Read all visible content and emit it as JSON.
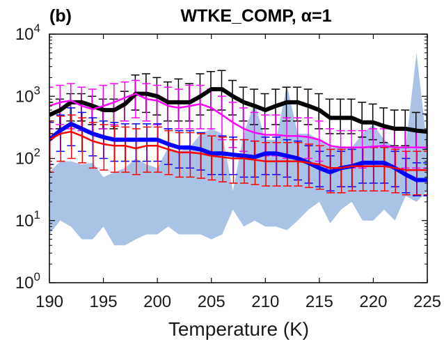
{
  "chart_data": {
    "type": "line",
    "panel_label": "(b)",
    "title": "WTKE_COMP, α=1",
    "xlabel": "Temperature (K)",
    "ylabel": "",
    "xlim": [
      190,
      225
    ],
    "ylim": [
      1,
      10000
    ],
    "yscale": "log",
    "xticks": [
      190,
      195,
      200,
      205,
      210,
      215,
      220,
      225
    ],
    "yticks": [
      {
        "value": 1,
        "base": "10",
        "exp": "0"
      },
      {
        "value": 10,
        "base": "10",
        "exp": "1"
      },
      {
        "value": 100,
        "base": "10",
        "exp": "2"
      },
      {
        "value": 1000,
        "base": "10",
        "exp": "3"
      },
      {
        "value": 10000,
        "base": "10",
        "exp": "4"
      }
    ],
    "grid": false,
    "x": [
      190,
      191,
      192,
      193,
      194,
      195,
      196,
      197,
      198,
      199,
      200,
      201,
      202,
      203,
      204,
      205,
      206,
      207,
      208,
      209,
      210,
      211,
      212,
      213,
      214,
      215,
      216,
      217,
      218,
      219,
      220,
      221,
      222,
      223,
      224,
      225
    ],
    "band": {
      "color": "#a9c2e6",
      "upper": [
        60,
        90,
        90,
        80,
        85,
        50,
        60,
        70,
        100,
        80,
        70,
        150,
        130,
        150,
        250,
        300,
        250,
        30,
        250,
        800,
        200,
        200,
        1500,
        250,
        250,
        200,
        150,
        150,
        150,
        250,
        350,
        200,
        150,
        150,
        5000,
        150
      ],
      "lower": [
        6,
        10,
        8,
        5,
        5,
        8,
        4,
        4,
        5,
        6,
        6,
        8,
        6,
        6,
        6,
        5,
        6,
        15,
        8,
        10,
        8,
        8,
        7,
        10,
        15,
        20,
        9,
        15,
        20,
        10,
        10,
        15,
        10,
        25,
        20,
        30
      ]
    },
    "series": [
      {
        "color": "#000000",
        "stroke_width": 6,
        "values": [
          500,
          600,
          800,
          800,
          700,
          600,
          600,
          750,
          1100,
          1100,
          1000,
          800,
          800,
          800,
          1000,
          1300,
          1300,
          1000,
          800,
          700,
          600,
          700,
          800,
          800,
          700,
          600,
          450,
          450,
          450,
          380,
          380,
          330,
          300,
          300,
          280,
          270
        ],
        "err_upper": [
          800,
          900,
          1100,
          1100,
          1000,
          900,
          900,
          1200,
          2200,
          2300,
          2000,
          1700,
          1900,
          1600,
          2300,
          2500,
          2600,
          1800,
          1400,
          1300,
          1100,
          1300,
          1400,
          1400,
          1300,
          1100,
          900,
          900,
          900,
          800,
          750,
          650,
          600,
          600,
          550,
          520
        ],
        "err_lower": [
          250,
          300,
          400,
          400,
          350,
          300,
          300,
          400,
          600,
          550,
          500,
          400,
          400,
          400,
          500,
          600,
          600,
          500,
          400,
          350,
          300,
          350,
          400,
          400,
          350,
          300,
          250,
          250,
          250,
          220,
          200,
          180,
          160,
          160,
          150,
          140
        ]
      },
      {
        "color": "#ff00ff",
        "stroke_width": 2.5,
        "values": [
          700,
          800,
          850,
          700,
          620,
          700,
          800,
          950,
          1100,
          900,
          850,
          700,
          650,
          700,
          750,
          650,
          500,
          380,
          300,
          260,
          240,
          240,
          230,
          230,
          220,
          200,
          160,
          150,
          150,
          150,
          155,
          160,
          150,
          150,
          150,
          150
        ],
        "err_upper": [
          1400,
          1500,
          1600,
          1400,
          1300,
          1500,
          1600,
          1700,
          1800,
          1600,
          1500,
          1400,
          1300,
          1500,
          1500,
          1300,
          1000,
          800,
          650,
          550,
          500,
          500,
          450,
          450,
          450,
          400,
          300,
          280,
          280,
          280,
          300,
          300,
          300,
          300,
          280,
          280
        ],
        "err_lower": [
          300,
          350,
          300,
          280,
          250,
          300,
          350,
          400,
          450,
          400,
          350,
          300,
          300,
          300,
          300,
          300,
          200,
          150,
          130,
          110,
          110,
          110,
          100,
          100,
          100,
          90,
          70,
          70,
          70,
          70,
          75,
          75,
          70,
          70,
          70,
          70
        ]
      },
      {
        "color": "#0000ff",
        "stroke_width": 6,
        "values": [
          200,
          280,
          360,
          300,
          250,
          220,
          200,
          200,
          200,
          200,
          200,
          170,
          150,
          150,
          140,
          120,
          120,
          115,
          110,
          105,
          120,
          120,
          110,
          100,
          85,
          70,
          60,
          70,
          75,
          85,
          85,
          85,
          70,
          55,
          45,
          45
        ],
        "err_upper": [
          380,
          500,
          650,
          550,
          450,
          400,
          380,
          360,
          360,
          360,
          360,
          300,
          280,
          280,
          260,
          230,
          230,
          220,
          200,
          190,
          220,
          220,
          200,
          190,
          160,
          130,
          110,
          130,
          140,
          150,
          150,
          150,
          130,
          100,
          85,
          85
        ],
        "err_lower": [
          80,
          130,
          160,
          130,
          110,
          100,
          90,
          90,
          90,
          90,
          90,
          80,
          70,
          70,
          65,
          55,
          55,
          55,
          50,
          50,
          55,
          55,
          50,
          45,
          40,
          35,
          30,
          35,
          35,
          40,
          40,
          40,
          35,
          28,
          25,
          25
        ]
      },
      {
        "color": "#ff0000",
        "stroke_width": 2.5,
        "values": [
          200,
          250,
          270,
          230,
          190,
          170,
          160,
          160,
          145,
          160,
          160,
          140,
          125,
          125,
          120,
          110,
          105,
          100,
          100,
          95,
          90,
          90,
          90,
          90,
          85,
          80,
          70,
          70,
          75,
          75,
          75,
          75,
          70,
          65,
          65,
          65
        ],
        "err_upper": [
          400,
          480,
          500,
          450,
          380,
          350,
          330,
          320,
          300,
          320,
          320,
          280,
          260,
          260,
          250,
          230,
          220,
          200,
          200,
          190,
          180,
          180,
          180,
          180,
          170,
          160,
          140,
          140,
          150,
          150,
          150,
          150,
          140,
          130,
          130,
          130
        ],
        "err_lower": [
          60,
          90,
          100,
          85,
          70,
          65,
          60,
          60,
          55,
          60,
          60,
          55,
          50,
          50,
          48,
          45,
          42,
          40,
          40,
          38,
          36,
          36,
          36,
          36,
          34,
          32,
          28,
          28,
          30,
          30,
          30,
          30,
          28,
          26,
          26,
          26
        ]
      }
    ]
  }
}
